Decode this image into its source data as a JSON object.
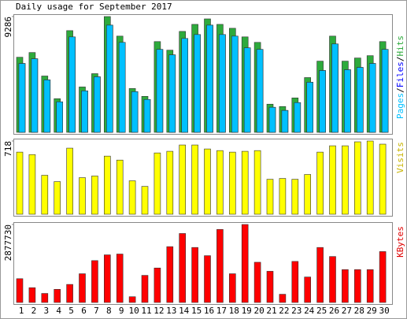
{
  "chart_data": [
    {
      "type": "bar",
      "title": "Daily usage for September 2017",
      "series": [
        {
          "name": "Hits",
          "color": "#2eaa3c",
          "values": [
            6023,
            6400,
            4517,
            2698,
            8157,
            3639,
            4706,
            9286,
            7717,
            3514,
            2886,
            7278,
            6588,
            8094,
            8659,
            9098,
            8659,
            8345,
            7655,
            7215,
            2259,
            2071,
            2761,
            4392,
            5710,
            7717,
            5710,
            5961,
            6149,
            7278
          ]
        },
        {
          "name": "Files",
          "color": "#0000ff",
          "values": [
            5522,
            5898,
            4204,
            2447,
            7655,
            3326,
            4455,
            8596,
            7215,
            3263,
            2635,
            6651,
            6212,
            7529,
            7843,
            8596,
            7843,
            7717,
            6777,
            6651,
            2008,
            1757,
            2384,
            4016,
            4957,
            7090,
            5020,
            5208,
            5522,
            6651
          ]
        },
        {
          "name": "Pages",
          "color": "#00c0ff",
          "values": [
            5522,
            5898,
            4204,
            2447,
            7655,
            3326,
            4455,
            8596,
            7215,
            3263,
            2635,
            6651,
            6212,
            7529,
            7843,
            8596,
            7843,
            7717,
            6777,
            6651,
            2008,
            1757,
            2384,
            4016,
            4957,
            7090,
            5020,
            5208,
            5522,
            6651
          ]
        }
      ],
      "ylim": [
        0,
        9286
      ],
      "yticks": [
        9286
      ]
    },
    {
      "type": "bar",
      "series": [
        {
          "name": "Visits",
          "color": "#ffff00",
          "values": [
            609,
            585,
            382,
            320,
            648,
            359,
            375,
            570,
            531,
            328,
            273,
            601,
            617,
            679,
            679,
            640,
            624,
            609,
            617,
            624,
            343,
            351,
            343,
            390,
            609,
            671,
            671,
            710,
            718,
            687
          ]
        }
      ],
      "ylim": [
        0,
        718
      ],
      "yticks": [
        718
      ]
    },
    {
      "type": "bar",
      "categories": [
        "1",
        "2",
        "3",
        "4",
        "5",
        "6",
        "7",
        "8",
        "9",
        "10",
        "11",
        "12",
        "13",
        "14",
        "15",
        "16",
        "17",
        "18",
        "19",
        "20",
        "21",
        "22",
        "23",
        "24",
        "25",
        "26",
        "27",
        "28",
        "29",
        "30"
      ],
      "category_colors": [
        "#000080",
        "#008000",
        "#008000",
        "#000080",
        "#000080",
        "#000080",
        "#000080",
        "#000080",
        "#008000",
        "#008000",
        "#000080",
        "#000080",
        "#000080",
        "#000080",
        "#000080",
        "#008000",
        "#008000",
        "#000080",
        "#000080",
        "#000080",
        "#000080",
        "#000080",
        "#008000",
        "#008000",
        "#000080",
        "#000080",
        "#000080",
        "#000080",
        "#000080",
        "#008000"
      ],
      "series": [
        {
          "name": "KBytes",
          "color": "#ff0000",
          "values": [
            878000,
            545000,
            333000,
            485000,
            666000,
            1060000,
            1545000,
            1757000,
            1787000,
            212000,
            1000000,
            1272000,
            2060000,
            2545000,
            2030000,
            1727000,
            2696000,
            1060000,
            2877730,
            1484000,
            1151000,
            303000,
            1515000,
            939000,
            2030000,
            1696000,
            1212000,
            1212000,
            1212000,
            1878000
          ]
        }
      ],
      "ylim": [
        0,
        2877730
      ],
      "yticks": [
        2877730
      ]
    }
  ]
}
